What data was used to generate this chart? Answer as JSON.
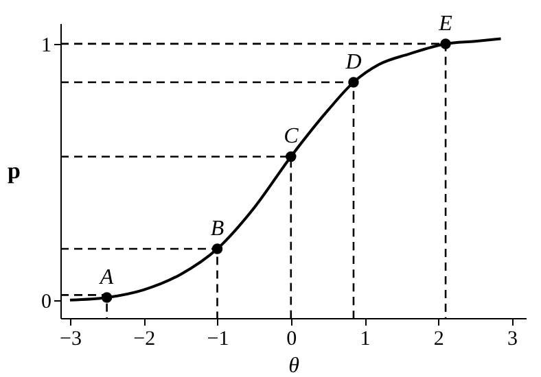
{
  "chart_data": {
    "type": "line",
    "xlabel": "θ",
    "ylabel": "p",
    "xlim": [
      -3.13,
      3.19
    ],
    "ylim": [
      -0.07,
      1.08
    ],
    "xticks": [
      -3,
      -2,
      -1,
      0,
      1,
      2,
      3
    ],
    "yticks": [
      0,
      1
    ],
    "grid": false,
    "series": [
      {
        "color": "#000000",
        "marker": "none",
        "line_style": "solid",
        "x": [
          -3,
          -2.5,
          -2,
          -1.5,
          -1,
          -0.5,
          0,
          0.5,
          0.85,
          1.2,
          1.6,
          2.1,
          2.5,
          2.85
        ],
        "values": [
          0.0,
          0.01,
          0.04,
          0.1,
          0.2,
          0.36,
          0.56,
          0.74,
          0.85,
          0.92,
          0.96,
          1.0,
          1.01,
          1.02
        ]
      },
      {
        "type": "scatter",
        "color": "#000000",
        "marker": "circle",
        "x": [
          -2.5,
          -1,
          0,
          0.85,
          2.1
        ],
        "values": [
          0.01,
          0.2,
          0.56,
          0.85,
          1.0
        ]
      },
      {
        "type": "line",
        "color": "#000000",
        "marker": "none",
        "line_style": "dashed",
        "x": [
          -3.13,
          -2.5,
          -2.5
        ],
        "values": [
          0.02,
          0.02,
          -0.07
        ]
      },
      {
        "type": "line",
        "color": "#000000",
        "marker": "none",
        "line_style": "dashed",
        "x": [
          -3.13,
          -1,
          -1
        ],
        "values": [
          0.2,
          0.2,
          -0.07
        ]
      },
      {
        "type": "line",
        "color": "#000000",
        "marker": "none",
        "line_style": "dashed",
        "x": [
          -3.13,
          0,
          0
        ],
        "values": [
          0.56,
          0.56,
          -0.07
        ]
      },
      {
        "type": "line",
        "color": "#000000",
        "marker": "none",
        "line_style": "dashed",
        "x": [
          -3.13,
          0.85,
          0.85
        ],
        "values": [
          0.85,
          0.85,
          -0.07
        ]
      },
      {
        "type": "line",
        "color": "#000000",
        "marker": "none",
        "line_style": "dashed",
        "x": [
          -3.13,
          2.1,
          2.1
        ],
        "values": [
          1.0,
          1.0,
          -0.07
        ]
      }
    ],
    "annotations": [
      {
        "text": "A",
        "x": -2.5,
        "y": 0.01
      },
      {
        "text": "B",
        "x": -1,
        "y": 0.2
      },
      {
        "text": "C",
        "x": 0,
        "y": 0.56
      },
      {
        "text": "D",
        "x": 0.85,
        "y": 0.85
      },
      {
        "text": "E",
        "x": 2.1,
        "y": 1.0
      }
    ]
  }
}
